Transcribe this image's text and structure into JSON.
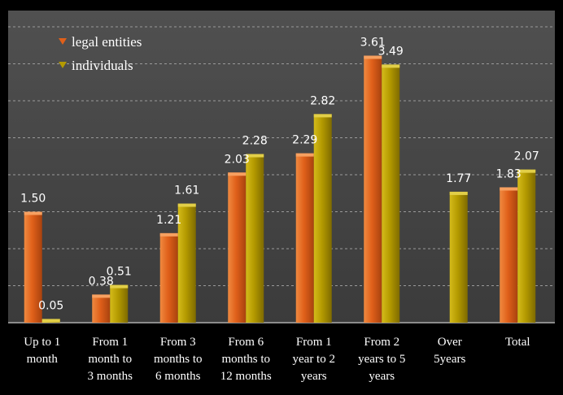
{
  "chart_data": {
    "type": "bar",
    "categories": [
      [
        "Up to 1",
        "month"
      ],
      [
        "From 1",
        "month to",
        "3 months"
      ],
      [
        "From 3",
        "months to",
        "6 months"
      ],
      [
        "From 6",
        "months to",
        "12 months"
      ],
      [
        "From 1",
        "year to 2",
        "years"
      ],
      [
        "From 2",
        "years to 5",
        "years"
      ],
      [
        "Over",
        "5years"
      ],
      [
        "Total"
      ]
    ],
    "series": [
      {
        "name": "legal entities",
        "color": "#e0601a",
        "values": [
          1.5,
          0.38,
          1.21,
          2.03,
          2.29,
          3.61,
          null,
          1.83
        ],
        "labels": [
          "1.50",
          "0.38",
          "1.21",
          "2.03",
          "2.29",
          "3.61",
          "",
          "1.83"
        ]
      },
      {
        "name": "individuals",
        "color": "#b49a00",
        "values": [
          0.05,
          0.51,
          1.61,
          2.28,
          2.82,
          3.49,
          1.77,
          2.07
        ],
        "labels": [
          "0.05",
          "0.51",
          "1.61",
          "2.28",
          "2.82",
          "3.49",
          "1.77",
          "2.07"
        ]
      }
    ],
    "ylim": [
      0,
      4
    ],
    "grid": true,
    "legend": "top-left"
  }
}
